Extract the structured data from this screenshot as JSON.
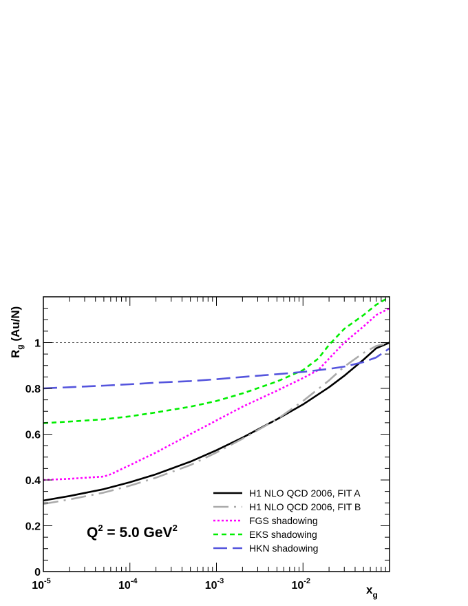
{
  "chart_data": {
    "type": "line",
    "xscale": "log",
    "xlim": [
      1e-05,
      0.1
    ],
    "ylim": [
      0,
      1.2
    ],
    "xlabel": "x",
    "xlabel_sub": "g",
    "ylabel_main": "R",
    "ylabel_sub": "g",
    "ylabel_rest": " (Au/N)",
    "yticks": [
      {
        "value": 0,
        "label": "0"
      },
      {
        "value": 0.2,
        "label": "0.2"
      },
      {
        "value": 0.4,
        "label": "0.4"
      },
      {
        "value": 0.6,
        "label": "0.6"
      },
      {
        "value": 0.8,
        "label": "0.8"
      },
      {
        "value": 1,
        "label": "1"
      }
    ],
    "xticks": [
      {
        "value": 1e-05,
        "base": "10",
        "exp": "-5"
      },
      {
        "value": 0.0001,
        "base": "10",
        "exp": "-4"
      },
      {
        "value": 0.001,
        "base": "10",
        "exp": "-3"
      },
      {
        "value": 0.01,
        "base": "10",
        "exp": "-2"
      }
    ],
    "reference_line": {
      "y": 1,
      "style": "dotted",
      "color": "#555555"
    },
    "annotation": {
      "q": "Q",
      "q_exp": "2",
      "mid": " = 5.0 GeV",
      "unit_exp": "2"
    },
    "series": [
      {
        "name": "H1 NLO QCD 2006, FIT A",
        "color": "#000000",
        "style": "solid",
        "x": [
          1e-05,
          2e-05,
          5e-05,
          0.0001,
          0.0002,
          0.0005,
          0.001,
          0.002,
          0.005,
          0.01,
          0.02,
          0.03,
          0.05,
          0.07,
          0.1
        ],
        "y": [
          0.31,
          0.33,
          0.36,
          0.39,
          0.425,
          0.48,
          0.53,
          0.585,
          0.665,
          0.73,
          0.805,
          0.855,
          0.925,
          0.975,
          1.0
        ]
      },
      {
        "name": "H1 NLO QCD 2006, FIT B",
        "color": "#aaaaaa",
        "style": "dashdot",
        "x": [
          1e-05,
          2e-05,
          5e-05,
          0.0001,
          0.0002,
          0.0005,
          0.001,
          0.002,
          0.005,
          0.01,
          0.02,
          0.03,
          0.05,
          0.07,
          0.1
        ],
        "y": [
          0.295,
          0.315,
          0.345,
          0.375,
          0.41,
          0.465,
          0.52,
          0.58,
          0.665,
          0.745,
          0.835,
          0.895,
          0.955,
          0.985,
          1.0
        ]
      },
      {
        "name": "FGS shadowing",
        "color": "#ff00ff",
        "style": "dotted",
        "x": [
          1e-05,
          2e-05,
          5e-05,
          6e-05,
          0.0001,
          0.0002,
          0.0005,
          0.001,
          0.002,
          0.005,
          0.01,
          0.015,
          0.02,
          0.03,
          0.05,
          0.07,
          0.1
        ],
        "y": [
          0.4,
          0.405,
          0.415,
          0.425,
          0.465,
          0.52,
          0.6,
          0.66,
          0.72,
          0.79,
          0.845,
          0.88,
          0.93,
          1.0,
          1.07,
          1.12,
          1.15
        ]
      },
      {
        "name": "EKS shadowing",
        "color": "#00ee00",
        "style": "dashed",
        "x": [
          1e-05,
          2e-05,
          5e-05,
          0.0001,
          0.0002,
          0.0005,
          0.001,
          0.002,
          0.005,
          0.01,
          0.015,
          0.02,
          0.03,
          0.05,
          0.07,
          0.1
        ],
        "y": [
          0.648,
          0.655,
          0.665,
          0.678,
          0.695,
          0.72,
          0.745,
          0.778,
          0.83,
          0.88,
          0.93,
          0.99,
          1.06,
          1.12,
          1.165,
          1.2
        ]
      },
      {
        "name": "HKN shadowing",
        "color": "#5555dd",
        "style": "longdash",
        "x": [
          1e-05,
          2e-05,
          5e-05,
          0.0001,
          0.0002,
          0.0005,
          0.001,
          0.002,
          0.005,
          0.01,
          0.02,
          0.03,
          0.05,
          0.07,
          0.1
        ],
        "y": [
          0.8,
          0.805,
          0.812,
          0.818,
          0.825,
          0.832,
          0.84,
          0.85,
          0.862,
          0.872,
          0.885,
          0.895,
          0.915,
          0.935,
          0.975
        ]
      }
    ]
  }
}
